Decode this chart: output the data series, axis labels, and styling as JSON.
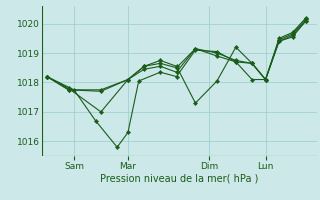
{
  "background_color": "#cce8e8",
  "grid_color": "#99cccc",
  "line_color": "#1a5c1a",
  "ylabel": "Pression niveau de la mer( hPa )",
  "ylim": [
    1015.5,
    1020.6
  ],
  "yticks": [
    1016,
    1017,
    1018,
    1019,
    1020
  ],
  "xtick_labels": [
    "Sam",
    "Mar",
    "Dim",
    "Lun"
  ],
  "xtick_positions": [
    0.12,
    0.32,
    0.62,
    0.83
  ],
  "series": [
    {
      "x": [
        0.02,
        0.1,
        0.22,
        0.32,
        0.38,
        0.44,
        0.5,
        0.57,
        0.65,
        0.72,
        0.78,
        0.83,
        0.88,
        0.93,
        0.98
      ],
      "y": [
        1018.2,
        1017.8,
        1017.0,
        1018.1,
        1018.45,
        1018.55,
        1018.35,
        1019.15,
        1019.0,
        1018.75,
        1018.65,
        1018.1,
        1019.5,
        1019.7,
        1020.2
      ]
    },
    {
      "x": [
        0.02,
        0.1,
        0.22,
        0.32,
        0.38,
        0.44,
        0.5,
        0.57,
        0.65,
        0.72,
        0.78,
        0.83,
        0.88,
        0.93,
        0.98
      ],
      "y": [
        1018.2,
        1017.75,
        1017.7,
        1018.1,
        1018.55,
        1018.65,
        1018.5,
        1019.15,
        1018.9,
        1018.7,
        1018.65,
        1018.1,
        1019.4,
        1019.6,
        1020.1
      ]
    },
    {
      "x": [
        0.02,
        0.1,
        0.22,
        0.32,
        0.38,
        0.44,
        0.5,
        0.57,
        0.65,
        0.72,
        0.78,
        0.83,
        0.88,
        0.93,
        0.98
      ],
      "y": [
        1018.2,
        1017.75,
        1017.75,
        1018.1,
        1018.55,
        1018.75,
        1018.55,
        1017.3,
        1018.05,
        1019.2,
        1018.65,
        1018.1,
        1019.45,
        1019.65,
        1020.15
      ]
    },
    {
      "x": [
        0.02,
        0.12,
        0.2,
        0.28,
        0.32,
        0.36,
        0.44,
        0.5,
        0.57,
        0.65,
        0.72,
        0.78,
        0.83,
        0.88,
        0.93,
        0.98
      ],
      "y": [
        1018.2,
        1017.75,
        1016.7,
        1015.8,
        1016.3,
        1018.05,
        1018.35,
        1018.2,
        1019.1,
        1019.05,
        1018.7,
        1018.1,
        1018.1,
        1019.4,
        1019.55,
        1020.1
      ]
    }
  ]
}
